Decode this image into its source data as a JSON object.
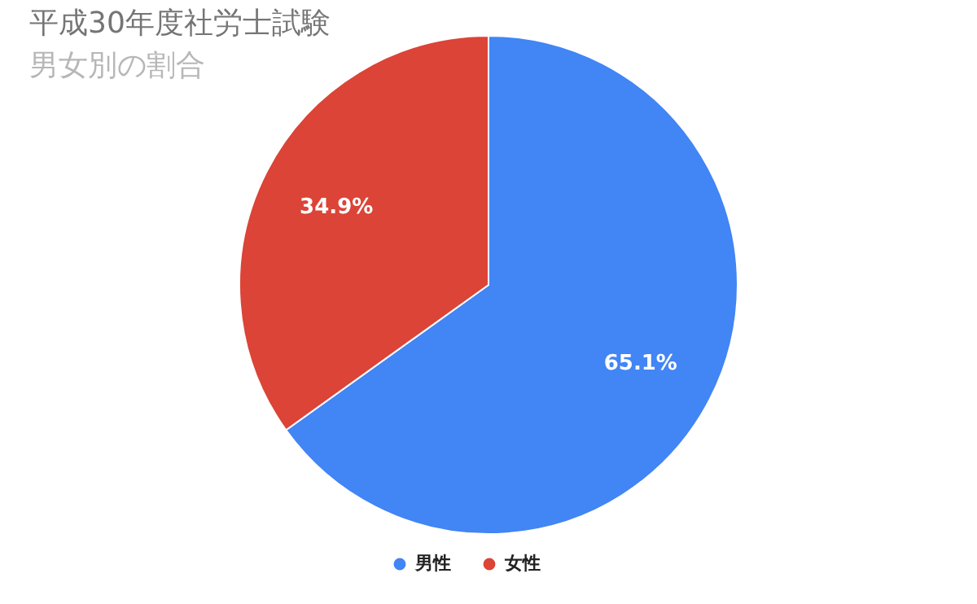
{
  "chart_data": {
    "type": "pie",
    "title": "平成30年度社労士試験",
    "subtitle": "男女別の割合",
    "categories": [
      "男性",
      "女性"
    ],
    "values": [
      65.1,
      34.9
    ],
    "colors": [
      "#4285f4",
      "#db4437"
    ],
    "value_labels": [
      "65.1%",
      "34.9%"
    ],
    "legend": "bottom"
  }
}
